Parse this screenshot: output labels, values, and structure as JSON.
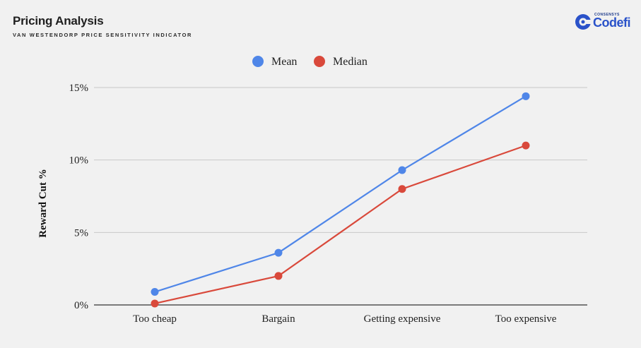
{
  "header": {
    "title": "Pricing Analysis",
    "subtitle": "VAN WESTENDORP PRICE SENSITIVITY INDICATOR"
  },
  "logo": {
    "top_text": "CONSENSYS",
    "name": "Codefi",
    "color": "#2a52c9"
  },
  "chart_data": {
    "type": "line",
    "categories": [
      "Too cheap",
      "Bargain",
      "Getting expensive",
      "Too expensive"
    ],
    "series": [
      {
        "name": "Mean",
        "color": "#4f86e8",
        "values": [
          0.9,
          3.6,
          9.3,
          14.4
        ]
      },
      {
        "name": "Median",
        "color": "#d9493b",
        "values": [
          0.1,
          2.0,
          8.0,
          11.0
        ]
      }
    ],
    "ylabel": "Reward Cut %",
    "xlabel": "",
    "ylim": [
      0,
      15
    ],
    "yticks": [
      0,
      5,
      10,
      15
    ],
    "ytick_labels": [
      "0%",
      "5%",
      "10%",
      "15%"
    ],
    "grid": true,
    "legend_position": "top-center"
  }
}
